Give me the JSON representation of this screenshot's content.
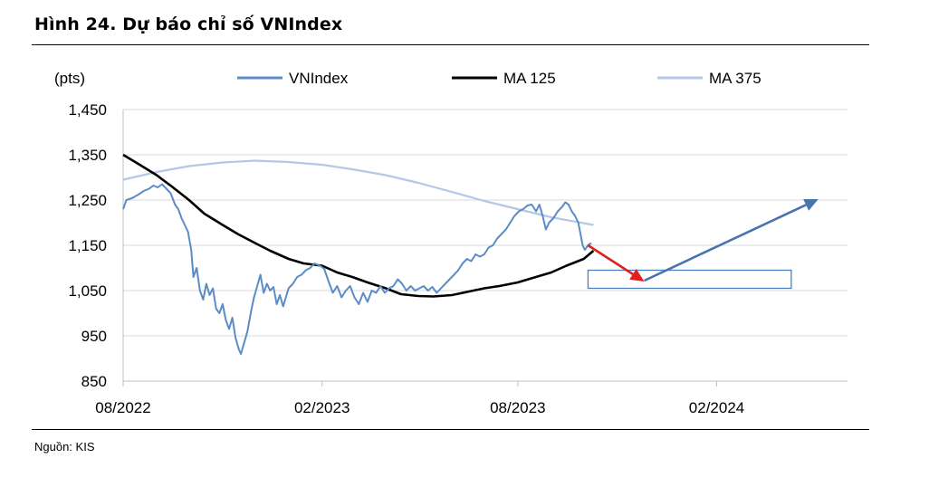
{
  "figure": {
    "title": "Hình 24. Dự báo chỉ số VNIndex",
    "source": "Nguồn: KIS"
  },
  "chart_data": {
    "type": "line",
    "title": "Hình 24. Dự báo chỉ số VNIndex",
    "ylabel": "(pts)",
    "xlabel": "",
    "ylim": [
      850,
      1450
    ],
    "yticks": [
      850,
      950,
      1050,
      1150,
      1250,
      1350,
      1450
    ],
    "ytick_labels": [
      "850",
      "950",
      "1,050",
      "1,150",
      "1,250",
      "1,350",
      "1,450"
    ],
    "xlim": [
      "2022-08",
      "2024-06"
    ],
    "xticks": [
      "2022-08",
      "2023-02",
      "2023-08",
      "2024-02"
    ],
    "xtick_labels": [
      "08/2022",
      "02/2023",
      "08/2023",
      "02/2024"
    ],
    "grid": true,
    "legend_position": "top",
    "series": [
      {
        "name": "VNIndex",
        "color": "#5b8cc6",
        "points": [
          [
            "2022-08-01",
            1230
          ],
          [
            "2022-08-04",
            1250
          ],
          [
            "2022-08-10",
            1255
          ],
          [
            "2022-08-15",
            1262
          ],
          [
            "2022-08-20",
            1270
          ],
          [
            "2022-08-25",
            1275
          ],
          [
            "2022-08-29",
            1282
          ],
          [
            "2022-09-02",
            1278
          ],
          [
            "2022-09-06",
            1285
          ],
          [
            "2022-09-10",
            1275
          ],
          [
            "2022-09-14",
            1265
          ],
          [
            "2022-09-18",
            1240
          ],
          [
            "2022-09-21",
            1230
          ],
          [
            "2022-09-24",
            1210
          ],
          [
            "2022-09-27",
            1195
          ],
          [
            "2022-09-30",
            1180
          ],
          [
            "2022-10-03",
            1140
          ],
          [
            "2022-10-05",
            1080
          ],
          [
            "2022-10-08",
            1100
          ],
          [
            "2022-10-11",
            1050
          ],
          [
            "2022-10-14",
            1030
          ],
          [
            "2022-10-17",
            1065
          ],
          [
            "2022-10-20",
            1040
          ],
          [
            "2022-10-23",
            1055
          ],
          [
            "2022-10-26",
            1010
          ],
          [
            "2022-10-29",
            1000
          ],
          [
            "2022-11-01",
            1020
          ],
          [
            "2022-11-04",
            985
          ],
          [
            "2022-11-07",
            965
          ],
          [
            "2022-11-10",
            990
          ],
          [
            "2022-11-13",
            945
          ],
          [
            "2022-11-16",
            920
          ],
          [
            "2022-11-18",
            910
          ],
          [
            "2022-11-21",
            935
          ],
          [
            "2022-11-24",
            960
          ],
          [
            "2022-11-27",
            1000
          ],
          [
            "2022-11-30",
            1035
          ],
          [
            "2022-12-03",
            1060
          ],
          [
            "2022-12-06",
            1085
          ],
          [
            "2022-12-09",
            1045
          ],
          [
            "2022-12-12",
            1065
          ],
          [
            "2022-12-15",
            1050
          ],
          [
            "2022-12-18",
            1058
          ],
          [
            "2022-12-21",
            1020
          ],
          [
            "2022-12-24",
            1040
          ],
          [
            "2022-12-27",
            1015
          ],
          [
            "2023-01-01",
            1055
          ],
          [
            "2023-01-05",
            1065
          ],
          [
            "2023-01-09",
            1080
          ],
          [
            "2023-01-13",
            1085
          ],
          [
            "2023-01-17",
            1095
          ],
          [
            "2023-01-21",
            1100
          ],
          [
            "2023-01-25",
            1110
          ],
          [
            "2023-01-30",
            1105
          ],
          [
            "2023-02-03",
            1098
          ],
          [
            "2023-02-07",
            1070
          ],
          [
            "2023-02-11",
            1045
          ],
          [
            "2023-02-15",
            1060
          ],
          [
            "2023-02-19",
            1035
          ],
          [
            "2023-02-23",
            1050
          ],
          [
            "2023-02-27",
            1060
          ],
          [
            "2023-03-03",
            1035
          ],
          [
            "2023-03-07",
            1020
          ],
          [
            "2023-03-11",
            1045
          ],
          [
            "2023-03-15",
            1025
          ],
          [
            "2023-03-19",
            1050
          ],
          [
            "2023-03-23",
            1045
          ],
          [
            "2023-03-27",
            1060
          ],
          [
            "2023-03-31",
            1045
          ],
          [
            "2023-04-04",
            1055
          ],
          [
            "2023-04-08",
            1060
          ],
          [
            "2023-04-12",
            1075
          ],
          [
            "2023-04-16",
            1065
          ],
          [
            "2023-04-20",
            1050
          ],
          [
            "2023-04-24",
            1060
          ],
          [
            "2023-04-28",
            1050
          ],
          [
            "2023-05-02",
            1055
          ],
          [
            "2023-05-06",
            1060
          ],
          [
            "2023-05-10",
            1050
          ],
          [
            "2023-05-14",
            1058
          ],
          [
            "2023-05-18",
            1045
          ],
          [
            "2023-05-22",
            1055
          ],
          [
            "2023-05-26",
            1065
          ],
          [
            "2023-05-30",
            1075
          ],
          [
            "2023-06-03",
            1085
          ],
          [
            "2023-06-07",
            1095
          ],
          [
            "2023-06-11",
            1110
          ],
          [
            "2023-06-15",
            1120
          ],
          [
            "2023-06-19",
            1115
          ],
          [
            "2023-06-23",
            1130
          ],
          [
            "2023-06-27",
            1125
          ],
          [
            "2023-07-01",
            1130
          ],
          [
            "2023-07-05",
            1145
          ],
          [
            "2023-07-09",
            1150
          ],
          [
            "2023-07-13",
            1165
          ],
          [
            "2023-07-17",
            1175
          ],
          [
            "2023-07-21",
            1185
          ],
          [
            "2023-07-25",
            1200
          ],
          [
            "2023-07-29",
            1215
          ],
          [
            "2023-08-02",
            1225
          ],
          [
            "2023-08-06",
            1230
          ],
          [
            "2023-08-10",
            1238
          ],
          [
            "2023-08-14",
            1240
          ],
          [
            "2023-08-18",
            1225
          ],
          [
            "2023-08-21",
            1240
          ],
          [
            "2023-08-24",
            1215
          ],
          [
            "2023-08-27",
            1185
          ],
          [
            "2023-08-30",
            1200
          ],
          [
            "2023-09-03",
            1210
          ],
          [
            "2023-09-07",
            1225
          ],
          [
            "2023-09-11",
            1235
          ],
          [
            "2023-09-14",
            1245
          ],
          [
            "2023-09-17",
            1240
          ],
          [
            "2023-09-20",
            1225
          ],
          [
            "2023-09-23",
            1215
          ],
          [
            "2023-09-26",
            1200
          ],
          [
            "2023-09-28",
            1175
          ],
          [
            "2023-09-30",
            1150
          ],
          [
            "2023-10-02",
            1140
          ],
          [
            "2023-10-05",
            1150
          ],
          [
            "2023-10-08",
            1155
          ]
        ]
      },
      {
        "name": "MA 125",
        "color": "#000000",
        "points": [
          [
            "2022-08-01",
            1350
          ],
          [
            "2022-08-15",
            1330
          ],
          [
            "2022-09-01",
            1305
          ],
          [
            "2022-09-15",
            1280
          ],
          [
            "2022-10-01",
            1250
          ],
          [
            "2022-10-15",
            1220
          ],
          [
            "2022-11-01",
            1195
          ],
          [
            "2022-11-15",
            1175
          ],
          [
            "2022-12-01",
            1155
          ],
          [
            "2022-12-15",
            1138
          ],
          [
            "2023-01-01",
            1120
          ],
          [
            "2023-01-15",
            1110
          ],
          [
            "2023-02-01",
            1105
          ],
          [
            "2023-02-15",
            1090
          ],
          [
            "2023-03-01",
            1080
          ],
          [
            "2023-03-15",
            1068
          ],
          [
            "2023-04-01",
            1055
          ],
          [
            "2023-04-15",
            1042
          ],
          [
            "2023-05-01",
            1038
          ],
          [
            "2023-05-15",
            1037
          ],
          [
            "2023-06-01",
            1040
          ],
          [
            "2023-06-15",
            1047
          ],
          [
            "2023-07-01",
            1055
          ],
          [
            "2023-07-15",
            1060
          ],
          [
            "2023-08-01",
            1068
          ],
          [
            "2023-08-15",
            1078
          ],
          [
            "2023-09-01",
            1090
          ],
          [
            "2023-09-15",
            1105
          ],
          [
            "2023-10-01",
            1120
          ],
          [
            "2023-10-10",
            1138
          ]
        ]
      },
      {
        "name": "MA 375",
        "color": "#b3c7e6",
        "points": [
          [
            "2022-08-01",
            1295
          ],
          [
            "2022-09-01",
            1312
          ],
          [
            "2022-10-01",
            1325
          ],
          [
            "2022-11-01",
            1333
          ],
          [
            "2022-12-01",
            1337
          ],
          [
            "2023-01-01",
            1334
          ],
          [
            "2023-02-01",
            1328
          ],
          [
            "2023-03-01",
            1318
          ],
          [
            "2023-04-01",
            1305
          ],
          [
            "2023-05-01",
            1288
          ],
          [
            "2023-06-01",
            1268
          ],
          [
            "2023-07-01",
            1248
          ],
          [
            "2023-08-01",
            1230
          ],
          [
            "2023-09-01",
            1212
          ],
          [
            "2023-10-10",
            1195
          ]
        ]
      }
    ],
    "annotations": {
      "down_arrow": {
        "color": "#e02020",
        "from": [
          "2023-10-05",
          1150
        ],
        "to": [
          "2023-11-26",
          1070
        ]
      },
      "target_box": {
        "color": "#4a7fc0",
        "x": [
          "2023-10-05",
          "2024-04-10"
        ],
        "y": [
          1055,
          1095
        ]
      },
      "up_arrow": {
        "color": "#4a72ad",
        "from": [
          "2023-11-26",
          1072
        ],
        "to": [
          "2024-05-05",
          1252
        ]
      }
    }
  }
}
